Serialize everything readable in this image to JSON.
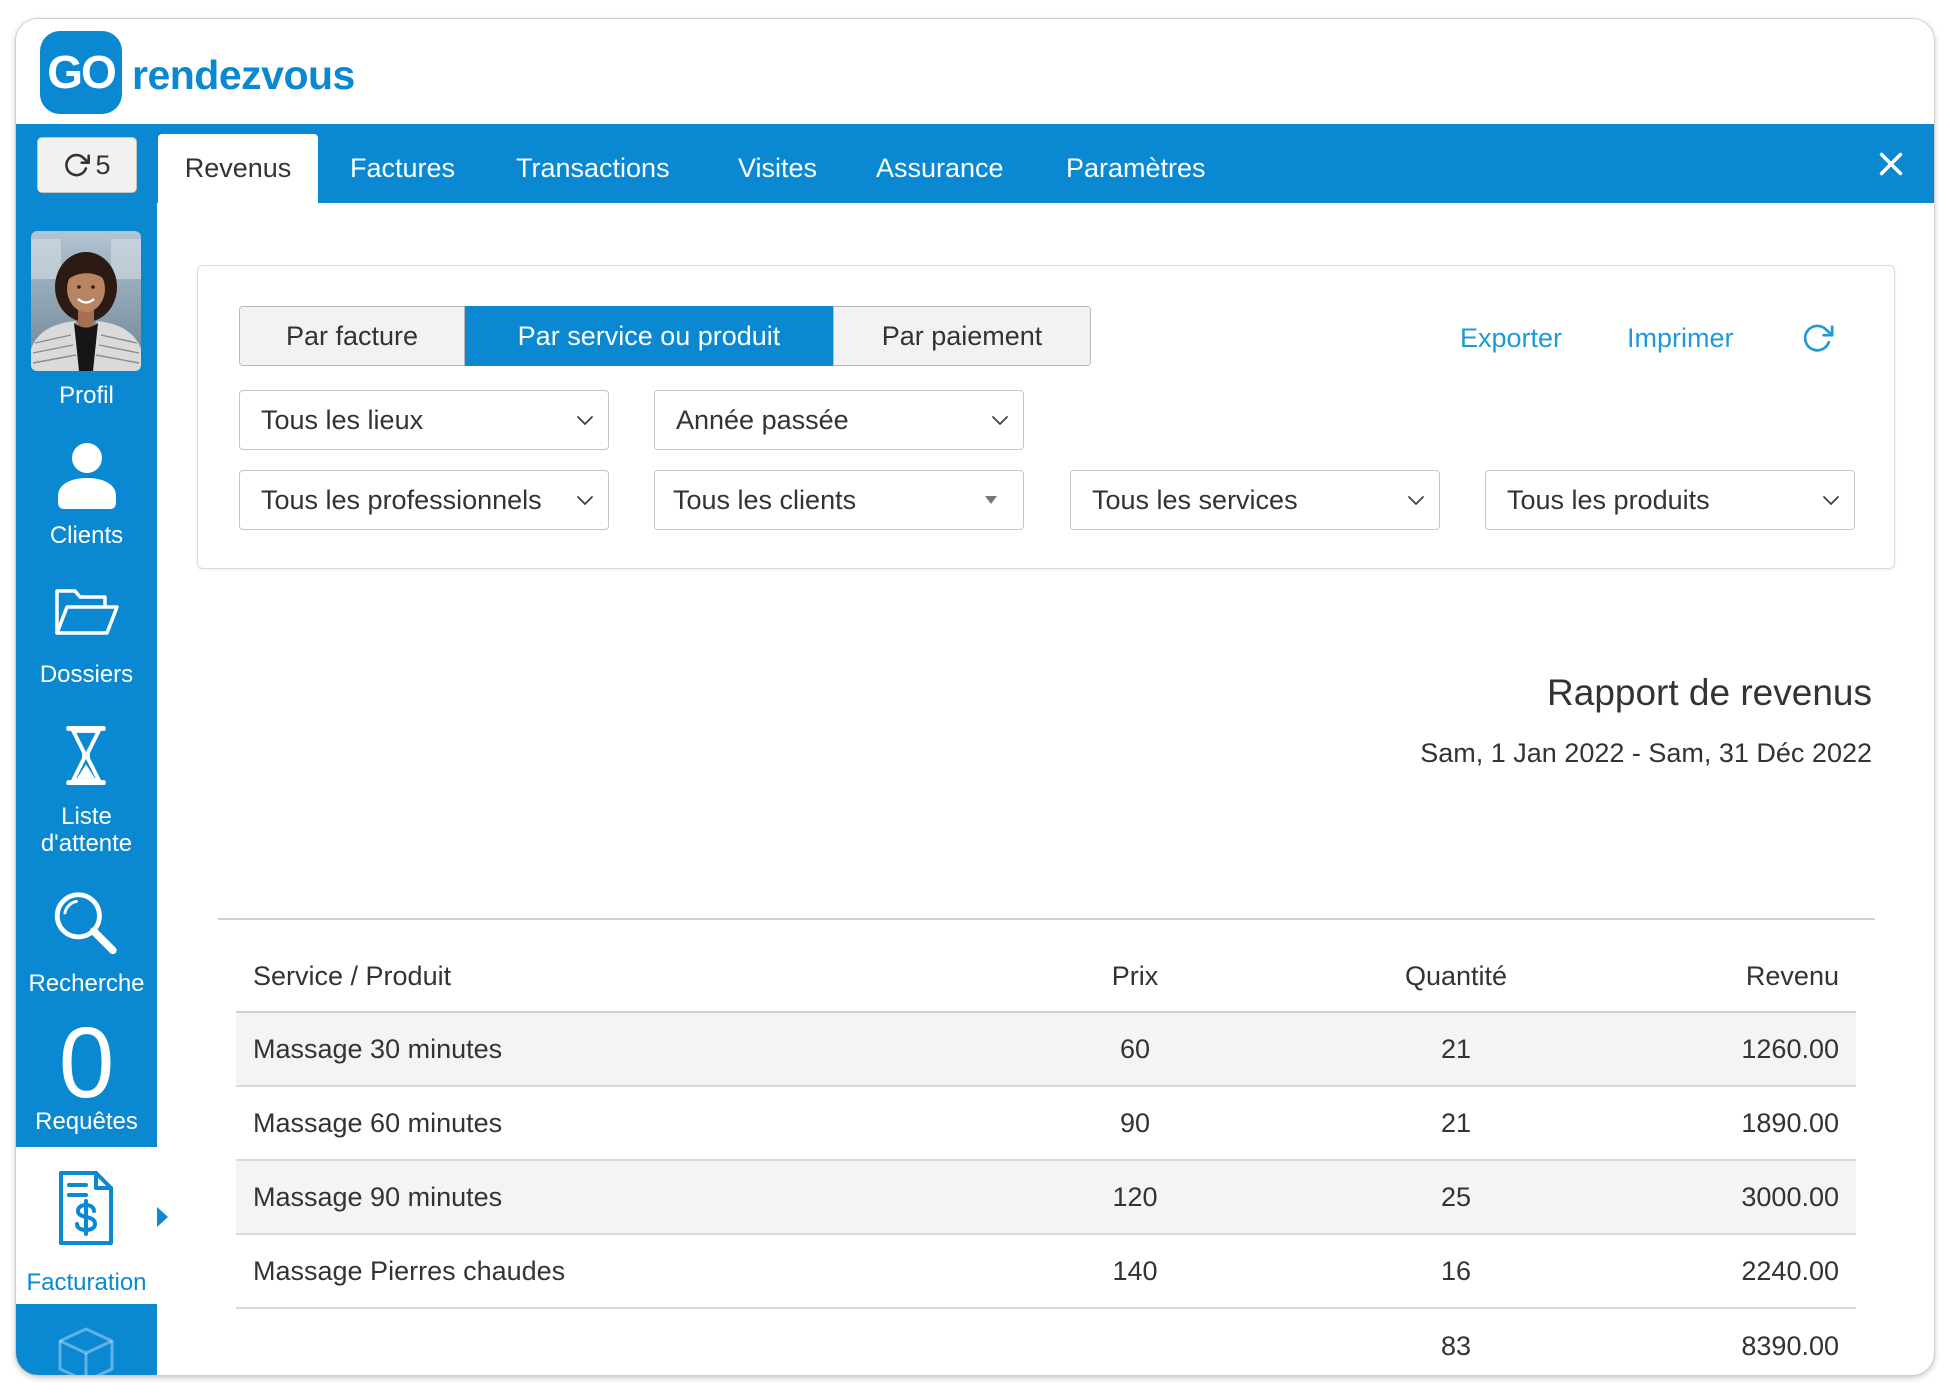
{
  "app": {
    "logo_mark": "GO",
    "logo_text": "rendezvous"
  },
  "colors": {
    "brand": "#0a89d2",
    "link": "#1e9ad6",
    "text": "#333333",
    "row_alt": "#f4f4f4"
  },
  "toolbar": {
    "refresh_count": "5",
    "refresh_icon": "refresh-icon",
    "close_icon": "close-icon"
  },
  "tabs": [
    {
      "label": "Revenus",
      "active": true
    },
    {
      "label": "Factures"
    },
    {
      "label": "Transactions"
    },
    {
      "label": "Visites"
    },
    {
      "label": "Assurance"
    },
    {
      "label": "Paramètres"
    }
  ],
  "sidebar": {
    "profile": {
      "label": "Profil",
      "icon": "profile-photo"
    },
    "clients": {
      "label": "Clients",
      "icon": "user-icon"
    },
    "dossiers": {
      "label": "Dossiers",
      "icon": "folder-icon"
    },
    "waitlist": {
      "label": "Liste d'attente",
      "icon": "hourglass-icon"
    },
    "search": {
      "label": "Recherche",
      "icon": "search-icon"
    },
    "requests": {
      "label": "Requêtes",
      "count": "0"
    },
    "billing": {
      "label": "Facturation",
      "icon": "invoice-icon",
      "active": true
    },
    "next_icon": "cube-icon"
  },
  "report_filters": {
    "views": [
      {
        "label": "Par facture"
      },
      {
        "label": "Par service ou produit",
        "active": true
      },
      {
        "label": "Par paiement"
      }
    ],
    "export_label": "Exporter",
    "print_label": "Imprimer",
    "refresh_icon": "refresh-icon",
    "location": "Tous les lieux",
    "period": "Année passée",
    "professional": "Tous les professionnels",
    "client": "Tous les clients",
    "service": "Tous les services",
    "product": "Tous les produits"
  },
  "report": {
    "title": "Rapport de revenus",
    "date_range": "Sam, 1 Jan 2022 - Sam, 31 Déc 2022"
  },
  "table": {
    "columns": [
      "Service / Produit",
      "Prix",
      "Quantité",
      "Revenu"
    ],
    "rows": [
      {
        "service": "Massage 30 minutes",
        "price": "60",
        "quantity": "21",
        "revenue": "1260.00"
      },
      {
        "service": "Massage 60 minutes",
        "price": "90",
        "quantity": "21",
        "revenue": "1890.00"
      },
      {
        "service": "Massage 90 minutes",
        "price": "120",
        "quantity": "25",
        "revenue": "3000.00"
      },
      {
        "service": "Massage Pierres chaudes",
        "price": "140",
        "quantity": "16",
        "revenue": "2240.00"
      }
    ],
    "total": {
      "quantity": "83",
      "revenue": "8390.00"
    }
  }
}
